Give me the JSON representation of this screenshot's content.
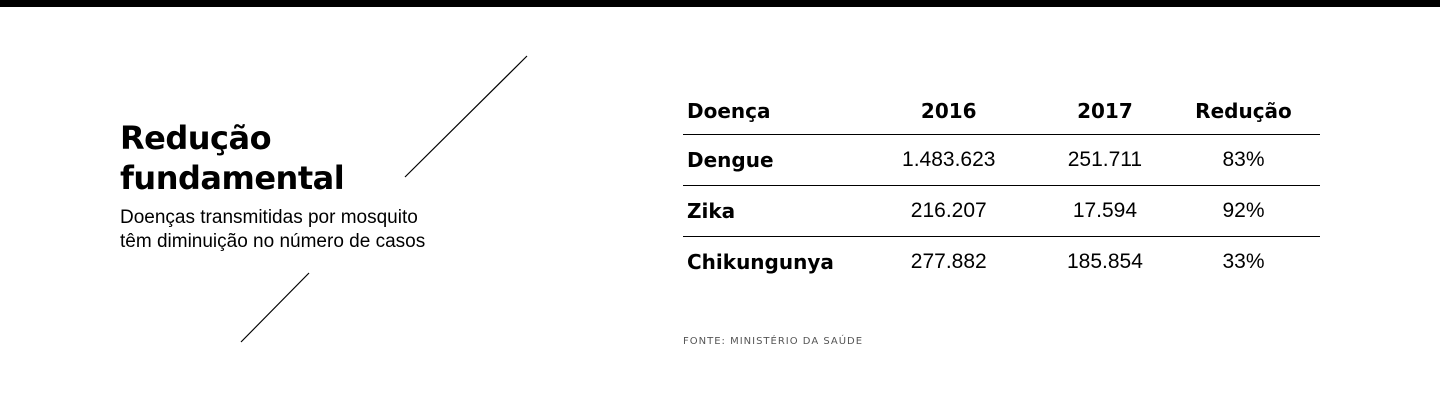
{
  "header": {
    "title": "Redução fundamental",
    "subtitle": "Doenças transmitidas por mosquito têm diminuição no número de casos"
  },
  "colors": {
    "bar": "#000000",
    "text": "#000000",
    "source_text": "#555555",
    "rule": "#000000"
  },
  "chart_data": {
    "type": "table",
    "columns": [
      "Doença",
      "2016",
      "2017",
      "Redução"
    ],
    "rows": [
      {
        "name": "Dengue",
        "v2016": "1.483.623",
        "v2017": "251.711",
        "reduction": "83%"
      },
      {
        "name": "Zika",
        "v2016": "216.207",
        "v2017": "17.594",
        "reduction": "92%"
      },
      {
        "name": "Chikungunya",
        "v2016": "277.882",
        "v2017": "185.854",
        "reduction": "33%"
      }
    ]
  },
  "source": "FONTE: MINISTÉRIO DA SAÚDE"
}
